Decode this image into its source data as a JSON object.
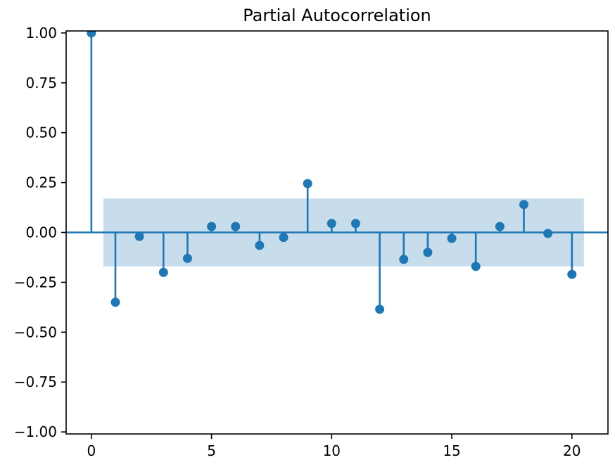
{
  "chart_data": {
    "type": "stem",
    "title": "Partial Autocorrelation",
    "xlabel": "",
    "ylabel": "",
    "x": [
      0,
      1,
      2,
      3,
      4,
      5,
      6,
      7,
      8,
      9,
      10,
      11,
      12,
      13,
      14,
      15,
      16,
      17,
      18,
      19,
      20
    ],
    "values": [
      1.0,
      -0.35,
      -0.02,
      -0.2,
      -0.13,
      0.03,
      0.03,
      -0.065,
      -0.025,
      0.245,
      0.045,
      0.045,
      -0.385,
      -0.135,
      -0.1,
      -0.03,
      -0.17,
      0.03,
      0.14,
      -0.005,
      -0.21
    ],
    "confidence_band": {
      "lower": -0.17,
      "upper": 0.17,
      "x_start": 0.5,
      "x_end": 20.5
    },
    "xlim": [
      -1.05,
      21.5
    ],
    "ylim": [
      -1.01,
      1.01
    ],
    "grid": false,
    "xticks": [
      {
        "value": 0,
        "label": "0"
      },
      {
        "value": 5,
        "label": "5"
      },
      {
        "value": 10,
        "label": "10"
      },
      {
        "value": 15,
        "label": "15"
      },
      {
        "value": 20,
        "label": "20"
      }
    ],
    "yticks": [
      {
        "value": 1.0,
        "label": "1.00"
      },
      {
        "value": 0.75,
        "label": "0.75"
      },
      {
        "value": 0.5,
        "label": "0.50"
      },
      {
        "value": 0.25,
        "label": "0.25"
      },
      {
        "value": 0.0,
        "label": "0.00"
      },
      {
        "value": -0.25,
        "label": "−0.25"
      },
      {
        "value": -0.5,
        "label": "−0.50"
      },
      {
        "value": -0.75,
        "label": "−0.75"
      },
      {
        "value": -1.0,
        "label": "−1.00"
      }
    ],
    "colors": {
      "stem": "#1f77b4",
      "marker": "#1f77b4",
      "zero_line": "#1f77b4",
      "band": "#c7ddec",
      "spine": "#000000",
      "tick": "#000000",
      "text": "#000000",
      "background": "#ffffff"
    }
  }
}
